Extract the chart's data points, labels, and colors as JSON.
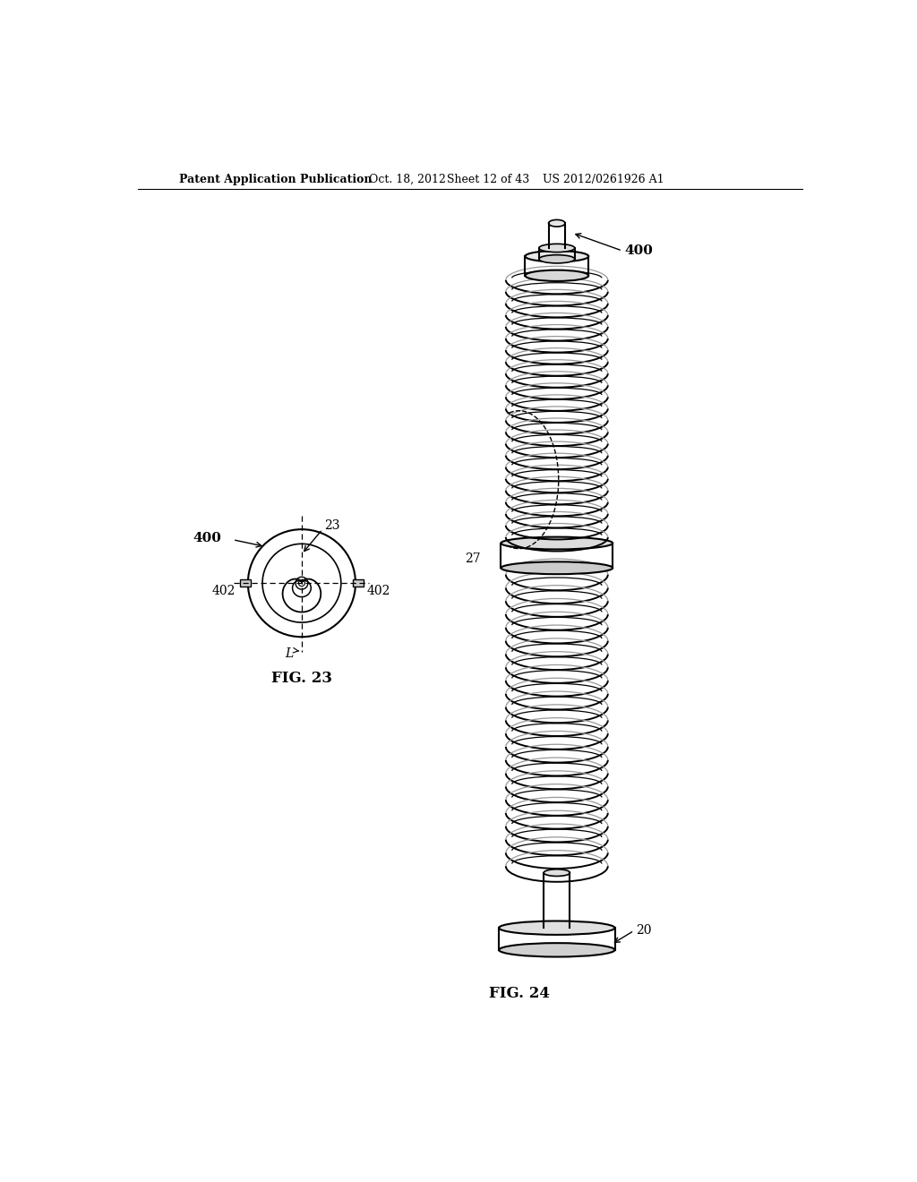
{
  "bg_color": "#ffffff",
  "header_text": "Patent Application Publication",
  "header_date": "Oct. 18, 2012",
  "header_sheet": "Sheet 12 of 43",
  "header_patent": "US 2012/0261926 A1",
  "fig23_label": "FIG. 23",
  "fig24_label": "FIG. 24",
  "label_400_fig23": "400",
  "label_402_left": "402",
  "label_402_right": "402",
  "label_23": "23",
  "label_L": "L",
  "label_400_fig24": "400",
  "label_27": "27",
  "label_20": "20"
}
